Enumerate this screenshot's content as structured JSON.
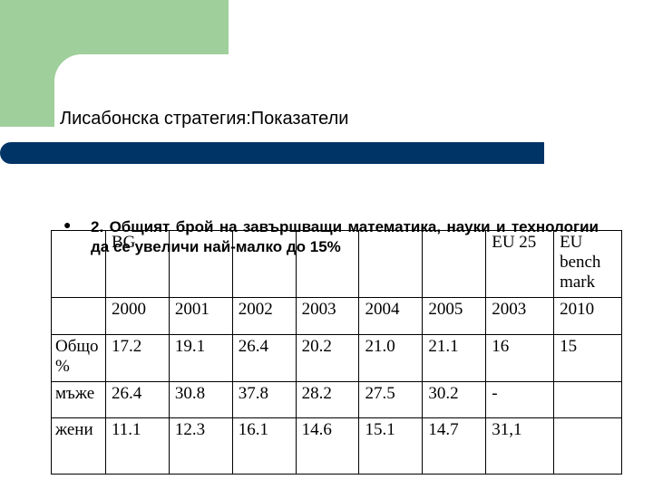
{
  "slide": {
    "title": "Лисабонска стратегия:Показатели",
    "bullet_text": "2. Общият брой на завършващи математика, науки и технологии да се увеличи най-малко до 15%"
  },
  "table": {
    "group_headers": [
      "",
      "BG",
      "",
      "",
      "",
      "",
      "",
      "EU 25",
      "EU bench mark"
    ],
    "years": [
      "",
      "2000",
      "2001",
      "2002",
      "2003",
      "2004",
      "2005",
      "2003",
      "2010"
    ],
    "rows": [
      {
        "label": "Общо %",
        "cells": [
          "17.2",
          "19.1",
          "26.4",
          "20.2",
          "21.0",
          "21.1",
          "16",
          "15"
        ]
      },
      {
        "label": "мъже",
        "cells": [
          "26.4",
          "30.8",
          "37.8",
          "28.2",
          "27.5",
          "30.2",
          "-",
          ""
        ]
      },
      {
        "label": "жени",
        "cells": [
          "11.1",
          "12.3",
          "16.1",
          "14.6",
          "15.1",
          "14.7",
          "31,1",
          ""
        ]
      }
    ]
  }
}
